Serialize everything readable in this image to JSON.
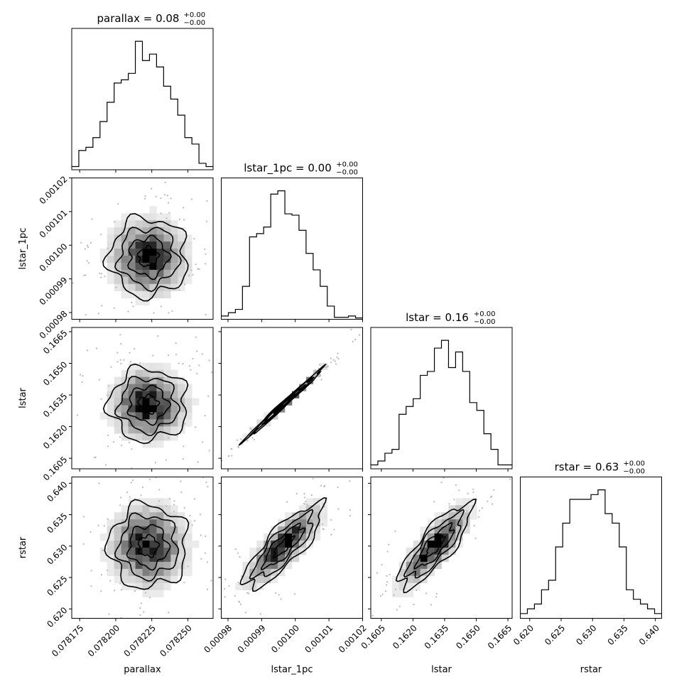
{
  "chart_data": {
    "type": "corner",
    "parameters": [
      "parallax",
      "lstar_1pc",
      "lstar",
      "rstar"
    ],
    "titles": [
      {
        "name": "parallax",
        "value": "0.08",
        "plus": "+0.00",
        "minus": "−0.00"
      },
      {
        "name": "lstar_1pc",
        "value": "0.00",
        "plus": "+0.00",
        "minus": "−0.00"
      },
      {
        "name": "lstar",
        "value": "0.16",
        "plus": "+0.00",
        "minus": "−0.00"
      },
      {
        "name": "rstar",
        "value": "0.63",
        "plus": "+0.00",
        "minus": "−0.00"
      }
    ],
    "ranges": [
      [
        0.0781695,
        0.0782675
      ],
      [
        0.000978,
        0.00102
      ],
      [
        0.16,
        0.1667
      ],
      [
        0.6185,
        0.641
      ]
    ],
    "ticks": [
      {
        "values": [
          0.078175,
          0.0782,
          0.078225,
          0.07825
        ],
        "labels": [
          "0.078175",
          "0.078200",
          "0.078225",
          "0.078250"
        ]
      },
      {
        "values": [
          0.00098,
          0.00099,
          0.001,
          0.00101,
          0.00102
        ],
        "labels": [
          "0.00098",
          "0.00099",
          "0.00100",
          "0.00101",
          "0.00102"
        ]
      },
      {
        "values": [
          0.1605,
          0.162,
          0.1635,
          0.165,
          0.1665
        ],
        "labels": [
          "0.1605",
          "0.1620",
          "0.1635",
          "0.1650",
          "0.1665"
        ]
      },
      {
        "values": [
          0.62,
          0.625,
          0.63,
          0.635,
          0.64
        ],
        "labels": [
          "0.620",
          "0.625",
          "0.630",
          "0.635",
          "0.640"
        ]
      }
    ],
    "histograms": [
      {
        "counts": [
          0.5,
          3,
          3.5,
          5,
          7.5,
          10.5,
          13.5,
          14,
          15,
          20,
          17,
          18,
          16,
          13,
          11,
          8.5,
          5,
          4,
          1,
          0.5
        ]
      },
      {
        "counts": [
          0.5,
          1,
          1.5,
          5,
          12.5,
          13,
          14,
          19,
          19.5,
          16,
          15.8,
          13.5,
          10,
          7.5,
          5,
          2,
          0.3,
          0.3,
          0.5,
          0.2
        ]
      },
      {
        "counts": [
          0.5,
          1,
          2,
          2.5,
          7,
          8,
          9,
          12,
          12.5,
          15.5,
          16.5,
          13,
          15,
          12.5,
          8.5,
          7.5,
          4.5,
          2.5,
          0.5,
          0.5
        ]
      },
      {
        "counts": [
          0.5,
          1,
          1.5,
          3,
          4,
          7.5,
          10,
          12.5,
          12.5,
          12.5,
          13,
          13.5,
          11,
          10,
          7.5,
          3,
          2,
          1.5,
          1,
          0.5
        ]
      }
    ],
    "pairs": [
      {
        "x": 0,
        "y": 1,
        "center": [
          0.0782225,
          0.0009965
        ],
        "sigma": [
          1.35e-05,
          5.8e-06
        ],
        "corr": 0.0
      },
      {
        "x": 0,
        "y": 2,
        "center": [
          0.0782225,
          0.16305
        ],
        "sigma": [
          1.35e-05,
          0.00085
        ],
        "corr": 0.0
      },
      {
        "x": 0,
        "y": 3,
        "center": [
          0.0782225,
          0.63
        ],
        "sigma": [
          1.35e-05,
          0.0033
        ],
        "corr": 0.0
      },
      {
        "x": 1,
        "y": 2,
        "center": [
          0.0009965,
          0.16305
        ],
        "sigma": [
          5.8e-06,
          0.00085
        ],
        "corr": 0.995
      },
      {
        "x": 1,
        "y": 3,
        "center": [
          0.0009965,
          0.63
        ],
        "sigma": [
          5.8e-06,
          0.0033
        ],
        "corr": 0.82
      },
      {
        "x": 2,
        "y": 3,
        "center": [
          0.16305,
          0.63
        ],
        "sigma": [
          0.00085,
          0.0033
        ],
        "corr": 0.82
      }
    ],
    "contour_levels_sigma": [
      0.5,
      1.0,
      1.5,
      2.0
    ],
    "grid": false,
    "legend": "none"
  }
}
